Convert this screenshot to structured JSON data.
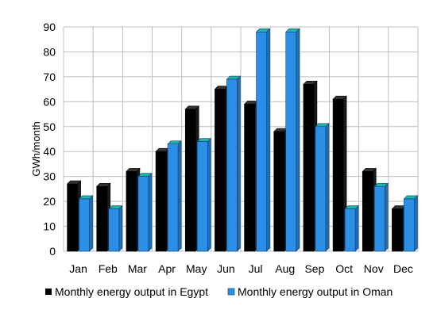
{
  "chart_data": {
    "type": "bar",
    "categories": [
      "Jan",
      "Feb",
      "Mar",
      "Apr",
      "May",
      "Jun",
      "Jul",
      "Aug",
      "Sep",
      "Oct",
      "Nov",
      "Dec"
    ],
    "series": [
      {
        "name": "Monthly energy output in Egypt",
        "color": "#000000",
        "values": [
          27,
          26,
          32,
          40,
          57,
          65,
          59,
          48,
          67,
          61,
          32,
          17
        ]
      },
      {
        "name": "Monthly energy output in Oman",
        "color": "#2b8fe8",
        "values": [
          21,
          17,
          30,
          43,
          44,
          69,
          88,
          88,
          50,
          17,
          26,
          21
        ]
      }
    ],
    "title": "",
    "xlabel": "",
    "ylabel": "GWh/month",
    "ylim": [
      0,
      90
    ],
    "yticks": [
      0,
      10,
      20,
      30,
      40,
      50,
      60,
      70,
      80,
      90
    ],
    "grid": true,
    "legend": "bottom"
  }
}
